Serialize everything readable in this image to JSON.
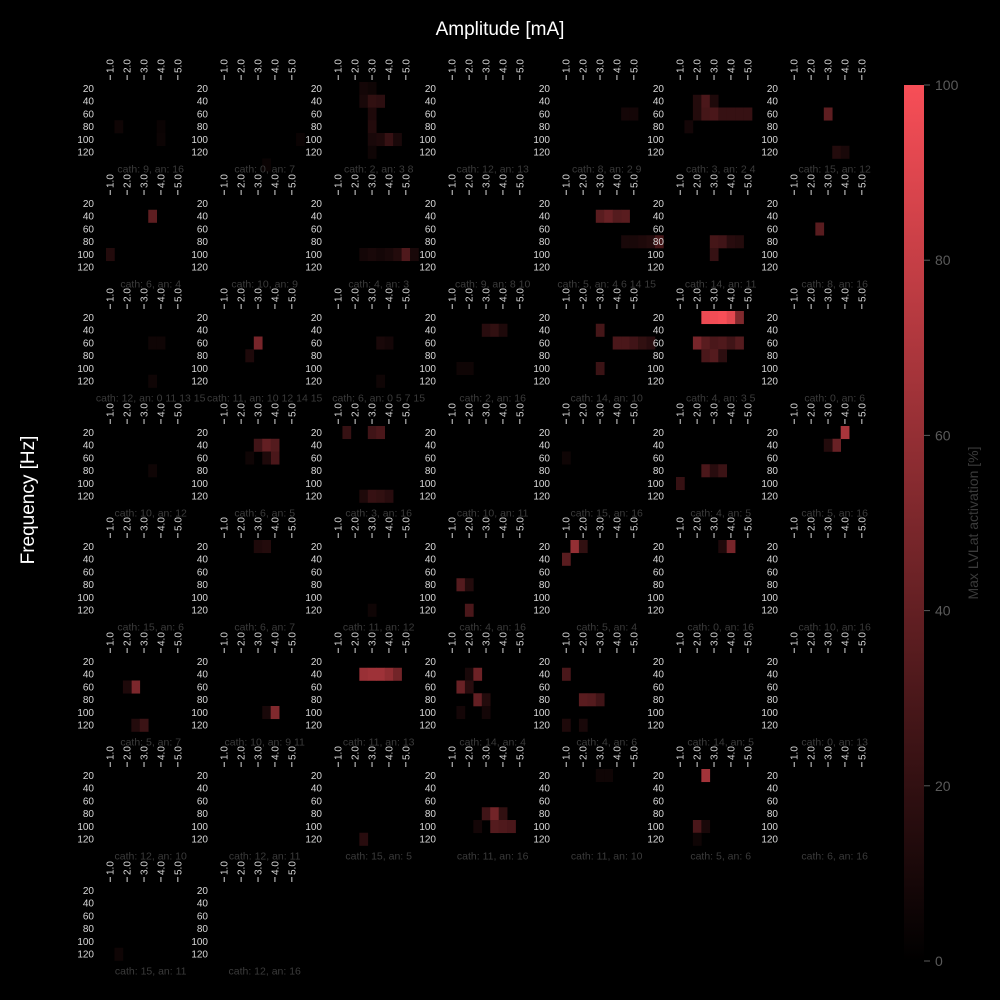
{
  "chart_data": {
    "type": "heatmap",
    "title": "Amplitude [mA]",
    "xlabel": "Amplitude [mA]",
    "ylabel": "Frequency [Hz]",
    "x_ticks": [
      "1.0",
      "2.0",
      "3.0",
      "4.0",
      "5.0"
    ],
    "y_ticks": [
      "20",
      "40",
      "60",
      "80",
      "100",
      "120"
    ],
    "colorbar": {
      "label": "Max LVLat activation [%]",
      "range": [
        0,
        100
      ],
      "ticks": [
        "0",
        "20",
        "40",
        "60",
        "80",
        "100"
      ],
      "colors": [
        "#000000",
        "#f74e57"
      ]
    },
    "panels": [
      {
        "label": "cath: 9, an: 16",
        "cells": [
          [
            1,
            3,
            6
          ],
          [
            6,
            3,
            4
          ],
          [
            6,
            4,
            5
          ]
        ]
      },
      {
        "label": "cath: 0, an: 7",
        "cells": [
          [
            5,
            6,
            4
          ],
          [
            9,
            4,
            4
          ]
        ]
      },
      {
        "label": "cath: 2, an: 3  8",
        "cells": [
          [
            3,
            0,
            8
          ],
          [
            4,
            0,
            6
          ],
          [
            3,
            1,
            10
          ],
          [
            4,
            1,
            20
          ],
          [
            5,
            1,
            18
          ],
          [
            4,
            2,
            12
          ],
          [
            4,
            3,
            14
          ],
          [
            4,
            4,
            10
          ],
          [
            5,
            4,
            12
          ],
          [
            6,
            4,
            22
          ],
          [
            7,
            4,
            10
          ],
          [
            4,
            5,
            6
          ]
        ]
      },
      {
        "label": "cath: 12, an: 13",
        "cells": []
      },
      {
        "label": "cath: 8, an: 2  9",
        "cells": [
          [
            7,
            2,
            8
          ],
          [
            8,
            2,
            8
          ]
        ]
      },
      {
        "label": "cath: 3, an: 2  4",
        "cells": [
          [
            2,
            1,
            14
          ],
          [
            3,
            1,
            30
          ],
          [
            4,
            1,
            12
          ],
          [
            2,
            2,
            14
          ],
          [
            3,
            2,
            28
          ],
          [
            4,
            2,
            30
          ],
          [
            5,
            2,
            22
          ],
          [
            6,
            2,
            22
          ],
          [
            7,
            2,
            22
          ],
          [
            8,
            2,
            22
          ],
          [
            1,
            3,
            8
          ]
        ]
      },
      {
        "label": "cath: 15, an: 12",
        "cells": [
          [
            4,
            2,
            38
          ],
          [
            5,
            5,
            14
          ],
          [
            6,
            5,
            10
          ]
        ]
      },
      {
        "label": "cath: 6, an: 4",
        "cells": [
          [
            5,
            1,
            38
          ],
          [
            0,
            4,
            14
          ]
        ]
      },
      {
        "label": "cath: 10, an: 9",
        "cells": []
      },
      {
        "label": "cath: 4, an: 3",
        "cells": [
          [
            3,
            4,
            8
          ],
          [
            4,
            4,
            10
          ],
          [
            5,
            4,
            8
          ],
          [
            6,
            4,
            10
          ],
          [
            7,
            4,
            14
          ],
          [
            8,
            4,
            32
          ],
          [
            9,
            4,
            10
          ]
        ]
      },
      {
        "label": "cath: 9, an: 8  10",
        "cells": []
      },
      {
        "label": "cath: 5, an: 4    6  14  15",
        "cells": [
          [
            4,
            1,
            36
          ],
          [
            5,
            1,
            42
          ],
          [
            6,
            1,
            34
          ],
          [
            7,
            1,
            36
          ],
          [
            7,
            3,
            10
          ],
          [
            8,
            3,
            10
          ],
          [
            9,
            3,
            12
          ],
          [
            10,
            3,
            14
          ],
          [
            11,
            3,
            28
          ]
        ]
      },
      {
        "label": "cath: 14, an: 11",
        "cells": [
          [
            4,
            3,
            28
          ],
          [
            5,
            3,
            26
          ],
          [
            6,
            3,
            16
          ],
          [
            7,
            3,
            14
          ],
          [
            4,
            4,
            22
          ]
        ]
      },
      {
        "label": "cath: 8, an: 16",
        "cells": [
          [
            3,
            2,
            36
          ]
        ]
      },
      {
        "label": "cath: 12, an: 0   11   13  15",
        "cells": [
          [
            5,
            2,
            6
          ],
          [
            6,
            2,
            6
          ],
          [
            5,
            5,
            6
          ]
        ]
      },
      {
        "label": "cath: 11, an: 10   12   14  15",
        "cells": [
          [
            4,
            2,
            48
          ],
          [
            3,
            3,
            12
          ]
        ]
      },
      {
        "label": "cath: 6, an: 0    5    7   15",
        "cells": [
          [
            5,
            2,
            10
          ],
          [
            6,
            2,
            8
          ],
          [
            5,
            5,
            6
          ]
        ]
      },
      {
        "label": "cath: 2, an: 16",
        "cells": [
          [
            4,
            1,
            16
          ],
          [
            5,
            1,
            20
          ],
          [
            6,
            1,
            12
          ],
          [
            1,
            4,
            6
          ],
          [
            2,
            4,
            6
          ]
        ]
      },
      {
        "label": "cath: 14, an: 10",
        "cells": [
          [
            4,
            1,
            28
          ],
          [
            6,
            2,
            30
          ],
          [
            7,
            2,
            30
          ],
          [
            8,
            2,
            26
          ],
          [
            9,
            2,
            20
          ],
          [
            10,
            2,
            16
          ],
          [
            4,
            4,
            24
          ]
        ]
      },
      {
        "label": "cath: 4, an: 3  5",
        "cells": [
          [
            3,
            0,
            95
          ],
          [
            4,
            0,
            98
          ],
          [
            5,
            0,
            100
          ],
          [
            6,
            0,
            92
          ],
          [
            7,
            0,
            52
          ],
          [
            2,
            2,
            48
          ],
          [
            3,
            2,
            36
          ],
          [
            4,
            2,
            30
          ],
          [
            5,
            2,
            32
          ],
          [
            6,
            2,
            26
          ],
          [
            7,
            2,
            34
          ],
          [
            3,
            3,
            30
          ],
          [
            4,
            3,
            34
          ],
          [
            5,
            3,
            18
          ]
        ]
      },
      {
        "label": "cath: 0, an: 6",
        "cells": []
      },
      {
        "label": "cath: 10, an: 12",
        "cells": [
          [
            5,
            3,
            6
          ]
        ]
      },
      {
        "label": "cath: 6, an: 5",
        "cells": [
          [
            3,
            2,
            6
          ],
          [
            4,
            1,
            26
          ],
          [
            5,
            1,
            40
          ],
          [
            6,
            1,
            34
          ],
          [
            6,
            2,
            30
          ],
          [
            5,
            2,
            12
          ]
        ]
      },
      {
        "label": "cath: 3, an: 16",
        "cells": [
          [
            1,
            0,
            22
          ],
          [
            4,
            0,
            26
          ],
          [
            5,
            0,
            30
          ],
          [
            3,
            5,
            12
          ],
          [
            4,
            5,
            22
          ],
          [
            5,
            5,
            20
          ],
          [
            6,
            5,
            16
          ]
        ]
      },
      {
        "label": "cath: 10, an: 11",
        "cells": []
      },
      {
        "label": "cath: 15, an: 16",
        "cells": [
          [
            0,
            2,
            6
          ]
        ]
      },
      {
        "label": "cath: 4, an: 5",
        "cells": [
          [
            3,
            3,
            30
          ],
          [
            4,
            3,
            16
          ],
          [
            5,
            3,
            24
          ],
          [
            0,
            4,
            22
          ]
        ]
      },
      {
        "label": "cath: 5, an: 16",
        "cells": [
          [
            6,
            0,
            68
          ],
          [
            5,
            1,
            42
          ],
          [
            4,
            1,
            14
          ]
        ]
      },
      {
        "label": "cath: 15, an: 6",
        "cells": []
      },
      {
        "label": "cath: 6, an: 7",
        "cells": [
          [
            4,
            0,
            12
          ],
          [
            5,
            0,
            14
          ]
        ]
      },
      {
        "label": "cath: 11, an: 12",
        "cells": [
          [
            4,
            5,
            6
          ]
        ]
      },
      {
        "label": "cath: 4, an: 16",
        "cells": [
          [
            1,
            3,
            34
          ],
          [
            2,
            3,
            14
          ],
          [
            2,
            5,
            30
          ]
        ]
      },
      {
        "label": "cath: 5, an: 4",
        "cells": [
          [
            1,
            0,
            60
          ],
          [
            2,
            0,
            20
          ],
          [
            0,
            1,
            36
          ]
        ]
      },
      {
        "label": "cath: 0, an: 16",
        "cells": [
          [
            5,
            0,
            12
          ],
          [
            6,
            0,
            48
          ]
        ]
      },
      {
        "label": "cath: 10, an: 16",
        "cells": []
      },
      {
        "label": "cath: 5, an: 7",
        "cells": [
          [
            3,
            2,
            50
          ],
          [
            2,
            2,
            12
          ],
          [
            3,
            5,
            14
          ],
          [
            4,
            5,
            24
          ]
        ]
      },
      {
        "label": "cath: 10, an: 9  11",
        "cells": [
          [
            5,
            4,
            10
          ],
          [
            6,
            4,
            52
          ]
        ]
      },
      {
        "label": "cath: 11, an: 13",
        "cells": [
          [
            3,
            1,
            62
          ],
          [
            4,
            1,
            64
          ],
          [
            5,
            1,
            64
          ],
          [
            6,
            1,
            58
          ],
          [
            7,
            1,
            46
          ]
        ]
      },
      {
        "label": "cath: 14, an: 4",
        "cells": [
          [
            2,
            1,
            10
          ],
          [
            3,
            1,
            44
          ],
          [
            1,
            2,
            42
          ],
          [
            2,
            2,
            16
          ],
          [
            3,
            3,
            40
          ],
          [
            4,
            3,
            14
          ],
          [
            1,
            4,
            8
          ],
          [
            4,
            4,
            8
          ]
        ]
      },
      {
        "label": "cath: 4, an: 6",
        "cells": [
          [
            0,
            1,
            30
          ],
          [
            2,
            3,
            36
          ],
          [
            3,
            3,
            34
          ],
          [
            4,
            3,
            26
          ],
          [
            0,
            5,
            12
          ],
          [
            2,
            5,
            10
          ]
        ]
      },
      {
        "label": "cath: 14, an: 5",
        "cells": []
      },
      {
        "label": "cath: 0, an: 13",
        "cells": []
      },
      {
        "label": "cath: 12, an: 10",
        "cells": []
      },
      {
        "label": "cath: 12, an: 11",
        "cells": []
      },
      {
        "label": "cath: 15, an: 5",
        "cells": [
          [
            3,
            5,
            16
          ]
        ]
      },
      {
        "label": "cath: 11, an: 16",
        "cells": [
          [
            4,
            3,
            26
          ],
          [
            5,
            3,
            46
          ],
          [
            6,
            3,
            20
          ],
          [
            3,
            4,
            8
          ],
          [
            5,
            4,
            34
          ],
          [
            6,
            4,
            32
          ],
          [
            7,
            4,
            30
          ]
        ]
      },
      {
        "label": "cath: 11, an: 10",
        "cells": [
          [
            4,
            0,
            6
          ],
          [
            5,
            0,
            6
          ]
        ]
      },
      {
        "label": "cath: 5, an: 6",
        "cells": [
          [
            3,
            0,
            66
          ],
          [
            2,
            4,
            30
          ],
          [
            3,
            4,
            10
          ],
          [
            2,
            5,
            6
          ]
        ]
      },
      {
        "label": "cath: 6, an: 16",
        "cells": []
      },
      {
        "label": "cath: 15, an: 11",
        "cells": [
          [
            1,
            5,
            6
          ]
        ]
      },
      {
        "label": "cath: 12, an: 16",
        "cells": []
      }
    ]
  }
}
